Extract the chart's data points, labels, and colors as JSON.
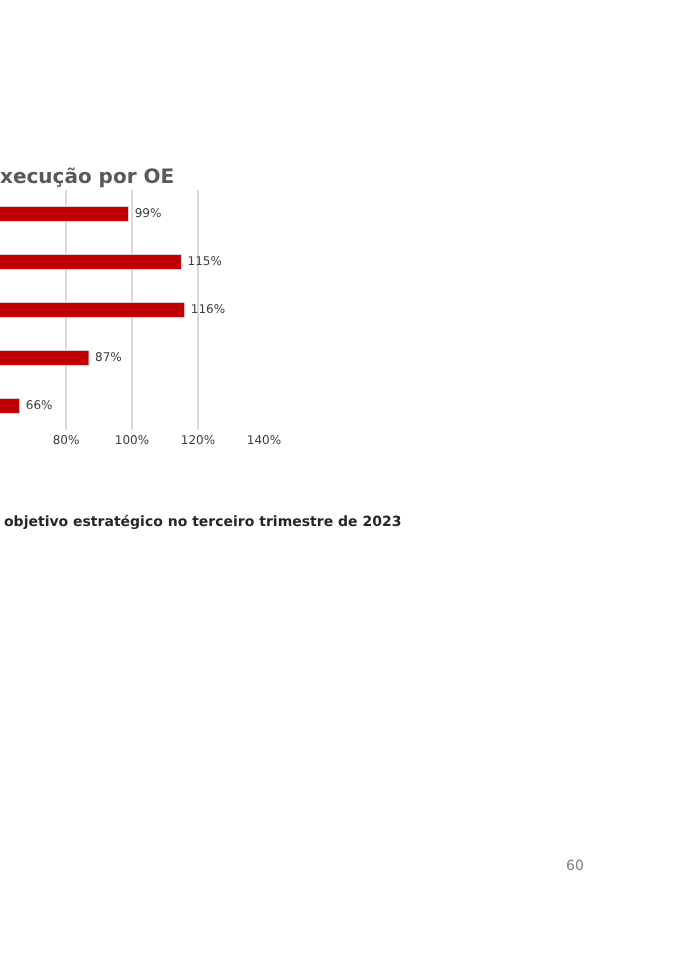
{
  "chart_data": {
    "type": "bar",
    "orientation": "horizontal",
    "title": "xecução por OE",
    "categories": [
      null,
      null,
      null,
      null,
      null
    ],
    "values": [
      99,
      115,
      116,
      87,
      66
    ],
    "value_labels": [
      "99%",
      "115%",
      "116%",
      "87%",
      "66%"
    ],
    "color": "#c00000",
    "xlim": [
      60,
      140
    ],
    "xticks": [
      {
        "value": 80,
        "label": "80%"
      },
      {
        "value": 100,
        "label": "100%"
      },
      {
        "value": 120,
        "label": "120%"
      },
      {
        "value": 140,
        "label": "140%"
      }
    ],
    "grid": "x",
    "tick_labels": "x",
    "legend": false,
    "annotations": [
      "objetivo estratégico no terceiro trimestre de 2023",
      "60"
    ]
  }
}
